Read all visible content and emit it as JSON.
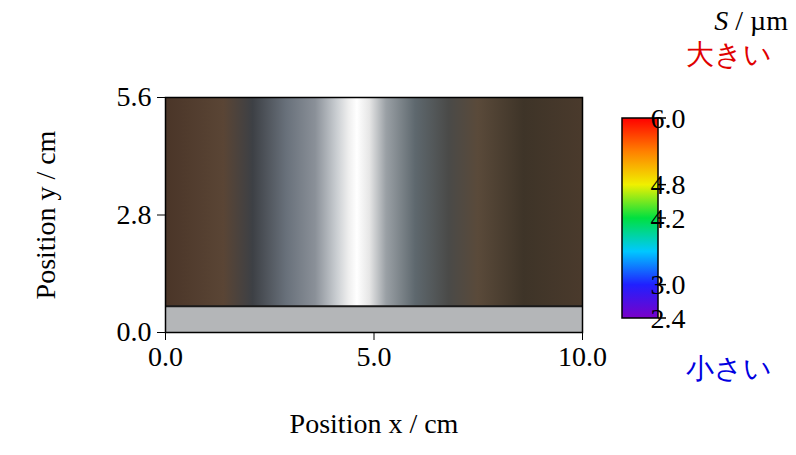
{
  "chart_data": {
    "type": "heatmap",
    "xlabel": "Position x / cm",
    "ylabel": "Position y / cm",
    "xlim": [
      0,
      10
    ],
    "xticks": [
      {
        "value": 0,
        "label": "0.0"
      },
      {
        "value": 5,
        "label": "5.0"
      },
      {
        "value": 10,
        "label": "10.0"
      }
    ],
    "ylim": [
      0,
      5.6
    ],
    "yticks": [
      {
        "value": 0,
        "label": "0.0"
      },
      {
        "value": 2.8,
        "label": "2.8"
      },
      {
        "value": 5.6,
        "label": "5.6"
      }
    ],
    "colorbar": {
      "title": "S / µm",
      "range": [
        2.4,
        6.0
      ],
      "ticks": [
        {
          "value": 2.4,
          "label": "2.4"
        },
        {
          "value": 3,
          "label": "3.0"
        },
        {
          "value": 4.2,
          "label": "4.2"
        },
        {
          "value": 4.8,
          "label": "4.8"
        },
        {
          "value": 6,
          "label": "6.0"
        }
      ],
      "high_label": "大きい",
      "low_label": "小さい"
    }
  }
}
